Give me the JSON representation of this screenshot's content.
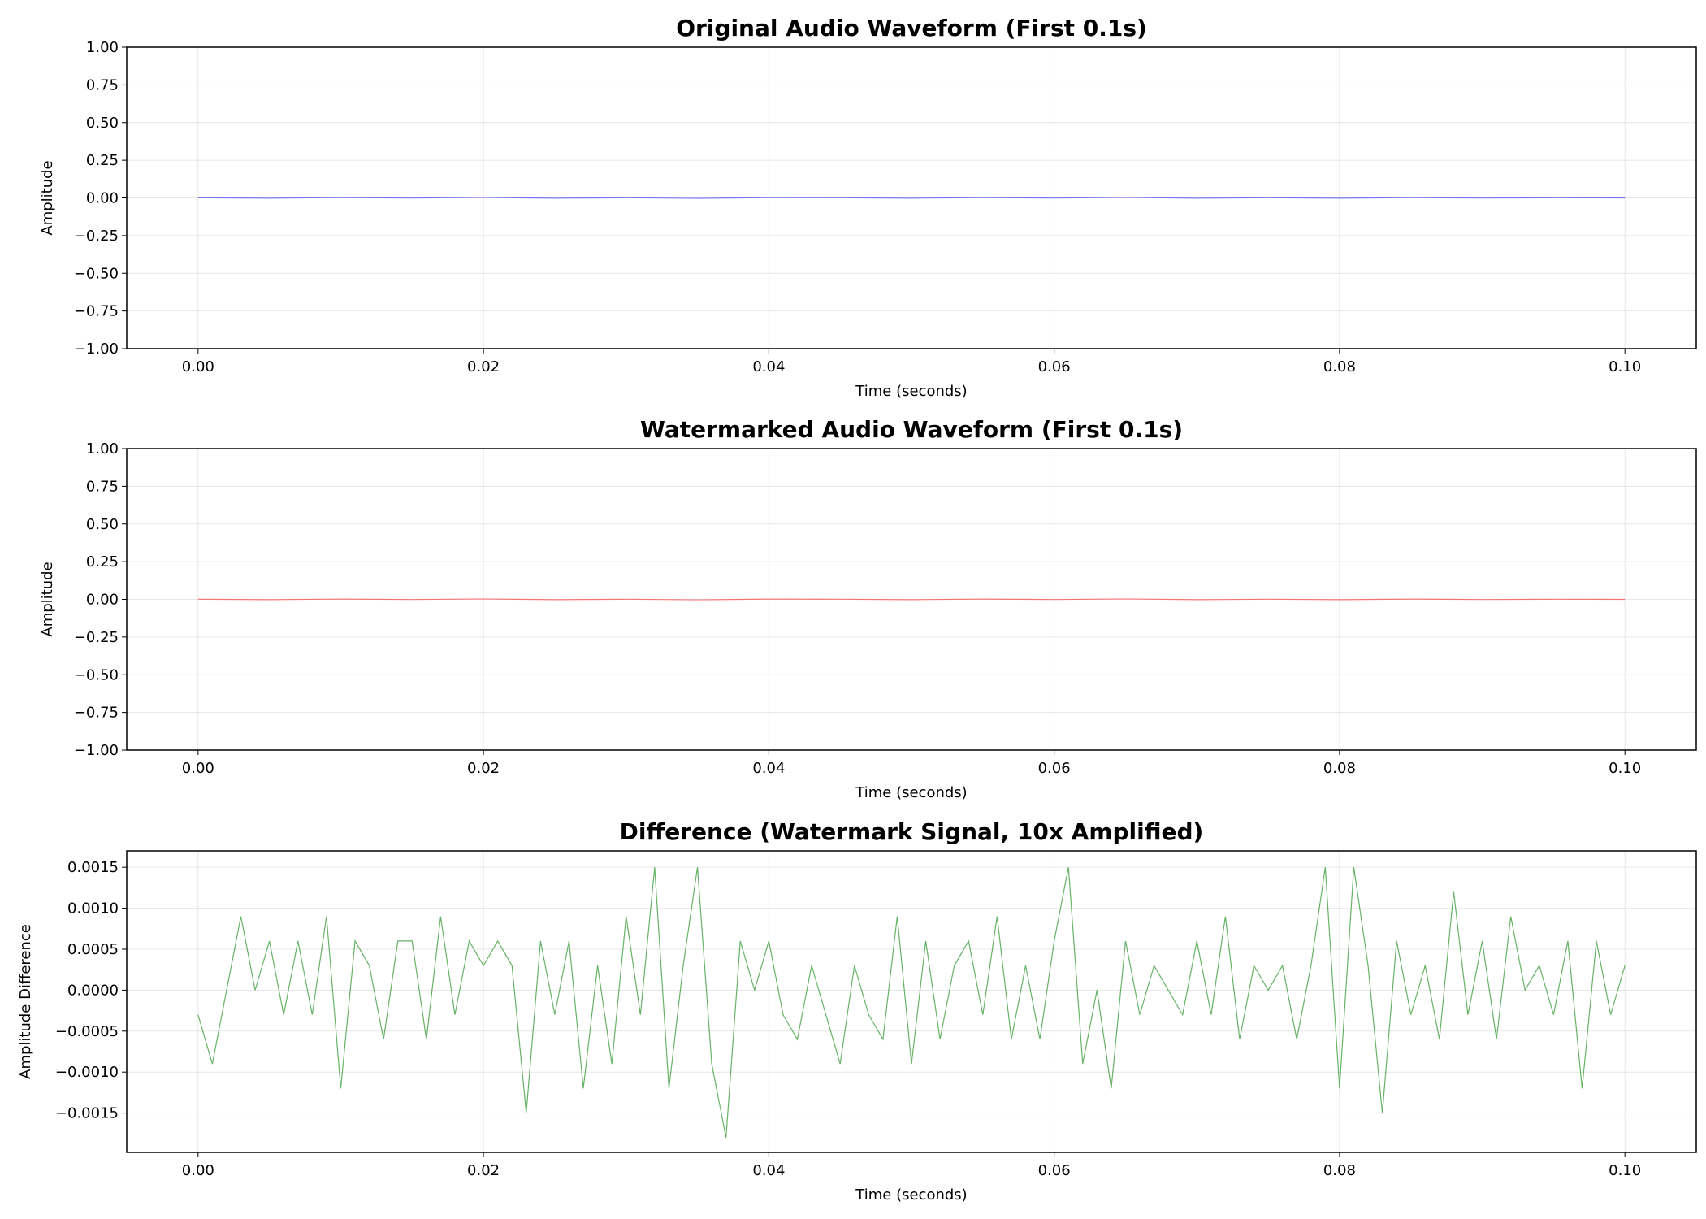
{
  "chart_data": [
    {
      "type": "line",
      "title": "Original Audio Waveform (First 0.1s)",
      "x_label": "Time (seconds)",
      "y_label": "Amplitude",
      "x": [
        0,
        0.005,
        0.01,
        0.015,
        0.02,
        0.025,
        0.03,
        0.035,
        0.04,
        0.045,
        0.05,
        0.055,
        0.06,
        0.065,
        0.07,
        0.075,
        0.08,
        0.085,
        0.09,
        0.095,
        0.1
      ],
      "values": [
        0.001,
        -0.002,
        0.002,
        -0.001,
        0.003,
        -0.002,
        0.001,
        -0.003,
        0.002,
        0.001,
        -0.002,
        0.002,
        -0.001,
        0.003,
        -0.002,
        0.001,
        -0.002,
        0.002,
        -0.001,
        0.001,
        0
      ],
      "color": "#0000ff",
      "alpha": 0.5,
      "xlim": [
        -0.005,
        0.105
      ],
      "ylim": [
        -1,
        1
      ],
      "xticks": [
        {
          "value": 0,
          "label": "0.00"
        },
        {
          "value": 0.02,
          "label": "0.02"
        },
        {
          "value": 0.04,
          "label": "0.04"
        },
        {
          "value": 0.06,
          "label": "0.06"
        },
        {
          "value": 0.08,
          "label": "0.08"
        },
        {
          "value": 0.1,
          "label": "0.10"
        }
      ],
      "yticks": [
        {
          "value": -1,
          "label": "−1.00"
        },
        {
          "value": -0.75,
          "label": "−0.75"
        },
        {
          "value": -0.5,
          "label": "−0.50"
        },
        {
          "value": -0.25,
          "label": "−0.25"
        },
        {
          "value": 0,
          "label": "0.00"
        },
        {
          "value": 0.25,
          "label": "0.25"
        },
        {
          "value": 0.5,
          "label": "0.50"
        },
        {
          "value": 0.75,
          "label": "0.75"
        },
        {
          "value": 1,
          "label": "1.00"
        }
      ],
      "grid": true
    },
    {
      "type": "line",
      "title": "Watermarked Audio Waveform (First 0.1s)",
      "x_label": "Time (seconds)",
      "y_label": "Amplitude",
      "x": [
        0,
        0.005,
        0.01,
        0.015,
        0.02,
        0.025,
        0.03,
        0.035,
        0.04,
        0.045,
        0.05,
        0.055,
        0.06,
        0.065,
        0.07,
        0.075,
        0.08,
        0.085,
        0.09,
        0.095,
        0.1
      ],
      "values": [
        0.001,
        -0.002,
        0.002,
        -0.001,
        0.003,
        -0.002,
        0.001,
        -0.003,
        0.002,
        0.001,
        -0.002,
        0.002,
        -0.001,
        0.003,
        -0.002,
        0.001,
        -0.002,
        0.002,
        -0.001,
        0.001,
        0
      ],
      "color": "#ff0000",
      "alpha": 0.5,
      "xlim": [
        -0.005,
        0.105
      ],
      "ylim": [
        -1,
        1
      ],
      "xticks": [
        {
          "value": 0,
          "label": "0.00"
        },
        {
          "value": 0.02,
          "label": "0.02"
        },
        {
          "value": 0.04,
          "label": "0.04"
        },
        {
          "value": 0.06,
          "label": "0.06"
        },
        {
          "value": 0.08,
          "label": "0.08"
        },
        {
          "value": 0.1,
          "label": "0.10"
        }
      ],
      "yticks": [
        {
          "value": -1,
          "label": "−1.00"
        },
        {
          "value": -0.75,
          "label": "−0.75"
        },
        {
          "value": -0.5,
          "label": "−0.50"
        },
        {
          "value": -0.25,
          "label": "−0.25"
        },
        {
          "value": 0,
          "label": "0.00"
        },
        {
          "value": 0.25,
          "label": "0.25"
        },
        {
          "value": 0.5,
          "label": "0.50"
        },
        {
          "value": 0.75,
          "label": "0.75"
        },
        {
          "value": 1,
          "label": "1.00"
        }
      ],
      "grid": true
    },
    {
      "type": "line",
      "title": "Difference (Watermark Signal, 10x Amplified)",
      "x_label": "Time (seconds)",
      "y_label": "Amplitude Difference",
      "x": [
        0,
        0.001,
        0.002,
        0.003,
        0.004,
        0.005,
        0.006,
        0.007,
        0.008,
        0.009,
        0.01,
        0.011,
        0.012,
        0.013,
        0.014,
        0.015,
        0.016,
        0.017,
        0.018,
        0.019,
        0.02,
        0.021,
        0.022,
        0.023,
        0.024,
        0.025,
        0.026,
        0.027,
        0.028,
        0.029,
        0.03,
        0.031,
        0.032,
        0.033,
        0.034,
        0.035,
        0.036,
        0.037,
        0.038,
        0.039,
        0.04,
        0.041,
        0.042,
        0.043,
        0.044,
        0.045,
        0.046,
        0.047,
        0.048,
        0.049,
        0.05,
        0.051,
        0.052,
        0.053,
        0.054,
        0.055,
        0.056,
        0.057,
        0.058,
        0.059,
        0.06,
        0.061,
        0.062,
        0.063,
        0.064,
        0.065,
        0.066,
        0.067,
        0.068,
        0.069,
        0.07,
        0.071,
        0.072,
        0.073,
        0.074,
        0.075,
        0.076,
        0.077,
        0.078,
        0.079,
        0.08,
        0.081,
        0.082,
        0.083,
        0.084,
        0.085,
        0.086,
        0.087,
        0.088,
        0.089,
        0.09,
        0.091,
        0.092,
        0.093,
        0.094,
        0.095,
        0.096,
        0.097,
        0.098,
        0.099,
        0.1
      ],
      "values": [
        -0.0003,
        -0.0009,
        0,
        0.0009,
        0,
        0.0006,
        -0.0003,
        0.0006,
        -0.0003,
        0.0009,
        -0.0012,
        0.0006,
        0.0003,
        -0.0006,
        0.0006,
        0.0006,
        -0.0006,
        0.0009,
        -0.0003,
        0.0006,
        0.0003,
        0.0006,
        0.0003,
        -0.0015,
        0.0006,
        -0.0003,
        0.0006,
        -0.0012,
        0.0003,
        -0.0009,
        0.0009,
        -0.0003,
        0.0015,
        -0.0012,
        0.0003,
        0.0015,
        -0.0009,
        -0.0018,
        0.0006,
        0,
        0.0006,
        -0.0003,
        -0.0006,
        0.0003,
        -0.0003,
        -0.0009,
        0.0003,
        -0.0003,
        -0.0006,
        0.0009,
        -0.0009,
        0.0006,
        -0.0006,
        0.0003,
        0.0006,
        -0.0003,
        0.0009,
        -0.0006,
        0.0003,
        -0.0006,
        0.0006,
        0.0015,
        -0.0009,
        0,
        -0.0012,
        0.0006,
        -0.0003,
        0.0003,
        0,
        -0.0003,
        0.0006,
        -0.0003,
        0.0009,
        -0.0006,
        0.0003,
        0,
        0.0003,
        -0.0006,
        0.0003,
        0.0015,
        -0.0012,
        0.0015,
        0.0003,
        -0.0015,
        0.0006,
        -0.0003,
        0.0003,
        -0.0006,
        0.0012,
        -0.0003,
        0.0006,
        -0.0006,
        0.0009,
        0,
        0.0003,
        -0.0003,
        0.0006,
        -0.0012,
        0.0006,
        -0.0003,
        0.0003
      ],
      "color": "#008000",
      "alpha": 0.6,
      "xlim": [
        -0.005,
        0.105
      ],
      "ylim": [
        -0.00198,
        0.0017
      ],
      "xticks": [
        {
          "value": 0,
          "label": "0.00"
        },
        {
          "value": 0.02,
          "label": "0.02"
        },
        {
          "value": 0.04,
          "label": "0.04"
        },
        {
          "value": 0.06,
          "label": "0.06"
        },
        {
          "value": 0.08,
          "label": "0.08"
        },
        {
          "value": 0.1,
          "label": "0.10"
        }
      ],
      "yticks": [
        {
          "value": -0.0015,
          "label": "−0.0015"
        },
        {
          "value": -0.001,
          "label": "−0.0010"
        },
        {
          "value": -0.0005,
          "label": "−0.0005"
        },
        {
          "value": 0,
          "label": "0.0000"
        },
        {
          "value": 0.0005,
          "label": "0.0005"
        },
        {
          "value": 0.001,
          "label": "0.0010"
        },
        {
          "value": 0.0015,
          "label": "0.0015"
        }
      ],
      "grid": true
    }
  ]
}
